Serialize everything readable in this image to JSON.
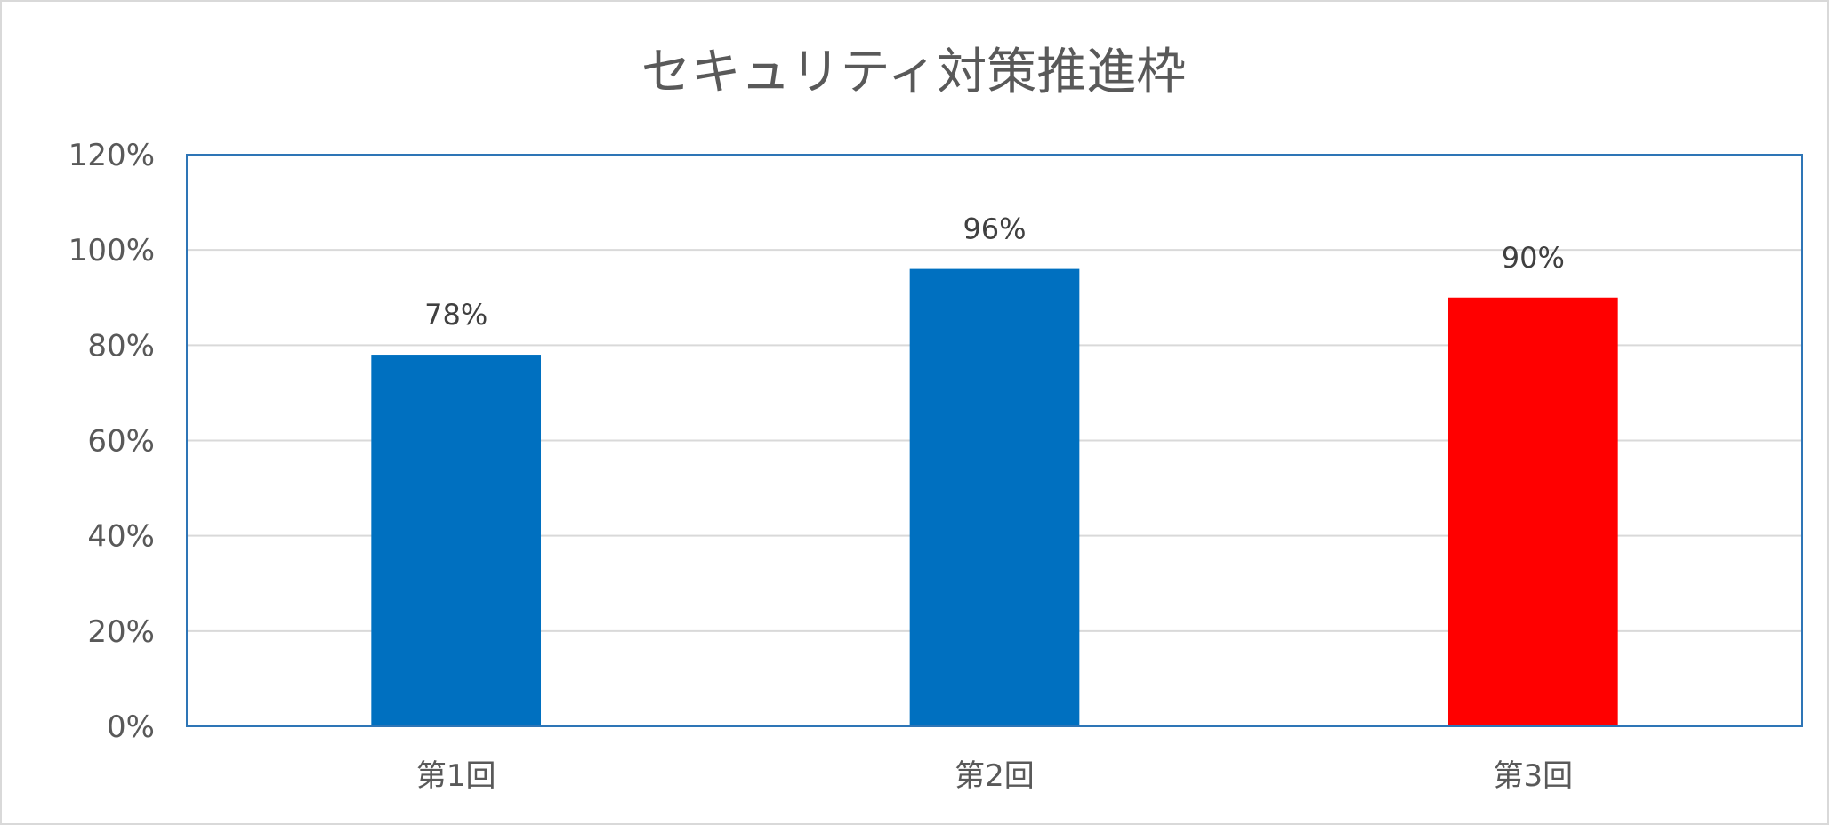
{
  "chart_data": {
    "type": "bar",
    "title": "セキュリティ対策推進枠",
    "categories": [
      "第1回",
      "第2回",
      "第3回"
    ],
    "values": [
      0.78,
      0.96,
      0.9
    ],
    "data_labels": [
      "78%",
      "96%",
      "90%"
    ],
    "bar_colors": [
      "#0070C0",
      "#0070C0",
      "#FF0000"
    ],
    "ylim": [
      0,
      1.2
    ],
    "yticks": [
      0,
      0.2,
      0.4,
      0.6,
      0.8,
      1.0,
      1.2
    ],
    "ytick_labels": [
      "0%",
      "20%",
      "40%",
      "60%",
      "80%",
      "100%",
      "120%"
    ],
    "grid": true,
    "plot_border_color": "#2E75B6",
    "gridline_color": "#d9d9d9"
  }
}
